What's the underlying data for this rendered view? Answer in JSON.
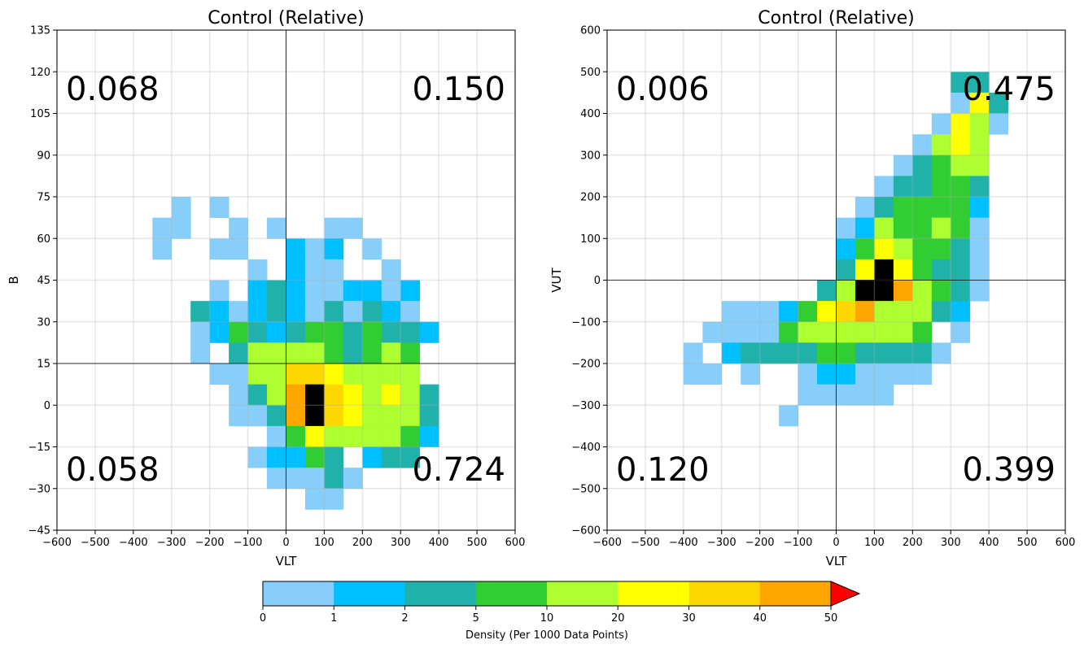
{
  "colorbar": {
    "label": "Density (Per 1000 Data Points)",
    "bounds": [
      0,
      1,
      2,
      5,
      10,
      20,
      30,
      40,
      50
    ],
    "tick_labels": [
      "0",
      "1",
      "2",
      "5",
      "10",
      "20",
      "30",
      "40",
      "50"
    ],
    "colors": [
      "#87cefa",
      "#00bfff",
      "#20b2aa",
      "#32cd32",
      "#adff2f",
      "#ffff00",
      "#ffd700",
      "#ffa500"
    ],
    "extend_color": "#ff0000"
  },
  "chart_data": [
    {
      "type": "heatmap",
      "title": "Control (Relative)",
      "xlabel": "VLT",
      "ylabel": "B",
      "xlim": [
        -600,
        600
      ],
      "ylim": [
        -45,
        135
      ],
      "xticks": [
        -600,
        -500,
        -400,
        -300,
        -200,
        -100,
        0,
        100,
        200,
        300,
        400,
        500,
        600
      ],
      "yticks": [
        -45,
        -30,
        -15,
        0,
        15,
        30,
        45,
        60,
        75,
        90,
        105,
        120,
        135
      ],
      "grid": true,
      "x_bin_width": 50,
      "y_bin_width": 7.5,
      "reference_lines": {
        "x": 0,
        "y": 15
      },
      "quadrant_labels": {
        "top_left": "0.068",
        "top_right": "0.150",
        "bottom_left": "0.058",
        "bottom_right": "0.724"
      },
      "cells": [
        [
          -300,
          67.5,
          0
        ],
        [
          -350,
          60,
          0
        ],
        [
          -300,
          60,
          0
        ],
        [
          -350,
          52.5,
          0
        ],
        [
          -200,
          67.5,
          0
        ],
        [
          -150,
          60,
          0
        ],
        [
          -200,
          52.5,
          0
        ],
        [
          -150,
          52.5,
          0
        ],
        [
          -50,
          60,
          0
        ],
        [
          100,
          60,
          0
        ],
        [
          150,
          60,
          0
        ],
        [
          0,
          52.5,
          1
        ],
        [
          50,
          52.5,
          0
        ],
        [
          100,
          52.5,
          1
        ],
        [
          200,
          52.5,
          0
        ],
        [
          -100,
          45,
          0
        ],
        [
          0,
          45,
          1
        ],
        [
          50,
          45,
          0
        ],
        [
          100,
          45,
          0
        ],
        [
          250,
          45,
          0
        ],
        [
          -200,
          37.5,
          0
        ],
        [
          -100,
          37.5,
          1
        ],
        [
          -50,
          37.5,
          2
        ],
        [
          0,
          37.5,
          1
        ],
        [
          50,
          37.5,
          0
        ],
        [
          100,
          37.5,
          0
        ],
        [
          150,
          37.5,
          1
        ],
        [
          200,
          37.5,
          1
        ],
        [
          250,
          37.5,
          0
        ],
        [
          300,
          37.5,
          1
        ],
        [
          -250,
          30,
          2
        ],
        [
          -200,
          30,
          1
        ],
        [
          -150,
          30,
          0
        ],
        [
          -100,
          30,
          1
        ],
        [
          -50,
          30,
          2
        ],
        [
          0,
          30,
          1
        ],
        [
          50,
          30,
          0
        ],
        [
          100,
          30,
          2
        ],
        [
          150,
          30,
          0
        ],
        [
          200,
          30,
          2
        ],
        [
          250,
          30,
          1
        ],
        [
          300,
          30,
          0
        ],
        [
          -250,
          22.5,
          0
        ],
        [
          -200,
          22.5,
          1
        ],
        [
          -150,
          22.5,
          3
        ],
        [
          -100,
          22.5,
          2
        ],
        [
          -50,
          22.5,
          1
        ],
        [
          0,
          22.5,
          2
        ],
        [
          50,
          22.5,
          3
        ],
        [
          100,
          22.5,
          3
        ],
        [
          150,
          22.5,
          2
        ],
        [
          200,
          22.5,
          3
        ],
        [
          250,
          22.5,
          2
        ],
        [
          300,
          22.5,
          2
        ],
        [
          350,
          22.5,
          1
        ],
        [
          -250,
          15,
          0
        ],
        [
          -150,
          15,
          2
        ],
        [
          -100,
          15,
          4
        ],
        [
          -50,
          15,
          4
        ],
        [
          0,
          15,
          4
        ],
        [
          50,
          15,
          4
        ],
        [
          100,
          15,
          3
        ],
        [
          150,
          15,
          2
        ],
        [
          200,
          15,
          3
        ],
        [
          250,
          15,
          4
        ],
        [
          300,
          15,
          3
        ],
        [
          -200,
          7.5,
          0
        ],
        [
          -150,
          7.5,
          0
        ],
        [
          -100,
          7.5,
          4
        ],
        [
          -50,
          7.5,
          4
        ],
        [
          0,
          7.5,
          6
        ],
        [
          50,
          7.5,
          6
        ],
        [
          100,
          7.5,
          5
        ],
        [
          150,
          7.5,
          4
        ],
        [
          200,
          7.5,
          4
        ],
        [
          250,
          7.5,
          4
        ],
        [
          300,
          7.5,
          4
        ],
        [
          -150,
          0,
          0
        ],
        [
          -100,
          0,
          2
        ],
        [
          -50,
          0,
          4
        ],
        [
          0,
          0,
          7
        ],
        [
          50,
          0,
          8
        ],
        [
          100,
          0,
          6
        ],
        [
          150,
          0,
          5
        ],
        [
          200,
          0,
          4
        ],
        [
          250,
          0,
          5
        ],
        [
          300,
          0,
          4
        ],
        [
          350,
          0,
          2
        ],
        [
          -150,
          -7.5,
          0
        ],
        [
          -100,
          -7.5,
          0
        ],
        [
          -50,
          -7.5,
          2
        ],
        [
          0,
          -7.5,
          7
        ],
        [
          50,
          -7.5,
          8
        ],
        [
          100,
          -7.5,
          6
        ],
        [
          150,
          -7.5,
          5
        ],
        [
          200,
          -7.5,
          4
        ],
        [
          250,
          -7.5,
          4
        ],
        [
          300,
          -7.5,
          4
        ],
        [
          350,
          -7.5,
          2
        ],
        [
          -50,
          -15,
          0
        ],
        [
          0,
          -15,
          3
        ],
        [
          50,
          -15,
          5
        ],
        [
          100,
          -15,
          4
        ],
        [
          150,
          -15,
          4
        ],
        [
          200,
          -15,
          4
        ],
        [
          250,
          -15,
          4
        ],
        [
          300,
          -15,
          3
        ],
        [
          350,
          -15,
          1
        ],
        [
          -100,
          -22.5,
          0
        ],
        [
          -50,
          -22.5,
          1
        ],
        [
          0,
          -22.5,
          1
        ],
        [
          50,
          -22.5,
          3
        ],
        [
          100,
          -22.5,
          2
        ],
        [
          200,
          -22.5,
          1
        ],
        [
          250,
          -22.5,
          2
        ],
        [
          300,
          -22.5,
          2
        ],
        [
          -50,
          -30,
          0
        ],
        [
          0,
          -30,
          0
        ],
        [
          50,
          -30,
          0
        ],
        [
          100,
          -30,
          2
        ],
        [
          150,
          -30,
          0
        ],
        [
          50,
          -37.5,
          0
        ],
        [
          100,
          -37.5,
          0
        ]
      ]
    },
    {
      "type": "heatmap",
      "title": "Control (Relative)",
      "xlabel": "VLT",
      "ylabel": "VUT",
      "xlim": [
        -600,
        600
      ],
      "ylim": [
        -600,
        600
      ],
      "xticks": [
        -600,
        -500,
        -400,
        -300,
        -200,
        -100,
        0,
        100,
        200,
        300,
        400,
        500,
        600
      ],
      "yticks": [
        -600,
        -500,
        -400,
        -300,
        -200,
        -100,
        0,
        100,
        200,
        300,
        400,
        500,
        600
      ],
      "grid": true,
      "x_bin_width": 50,
      "y_bin_width": 50,
      "reference_lines": {
        "x": 0,
        "y": 0
      },
      "quadrant_labels": {
        "top_left": "0.006",
        "top_right": "0.475",
        "bottom_left": "0.120",
        "bottom_right": "0.399"
      },
      "cells": [
        [
          300,
          450,
          2
        ],
        [
          350,
          450,
          2
        ],
        [
          300,
          400,
          0
        ],
        [
          350,
          400,
          5
        ],
        [
          400,
          400,
          2
        ],
        [
          250,
          350,
          0
        ],
        [
          300,
          350,
          5
        ],
        [
          350,
          350,
          4
        ],
        [
          400,
          350,
          0
        ],
        [
          200,
          300,
          0
        ],
        [
          250,
          300,
          4
        ],
        [
          300,
          300,
          5
        ],
        [
          350,
          300,
          4
        ],
        [
          150,
          250,
          0
        ],
        [
          200,
          250,
          2
        ],
        [
          250,
          250,
          3
        ],
        [
          300,
          250,
          4
        ],
        [
          350,
          250,
          4
        ],
        [
          100,
          200,
          0
        ],
        [
          150,
          200,
          2
        ],
        [
          200,
          200,
          2
        ],
        [
          250,
          200,
          3
        ],
        [
          300,
          200,
          3
        ],
        [
          350,
          200,
          2
        ],
        [
          50,
          150,
          0
        ],
        [
          100,
          150,
          2
        ],
        [
          150,
          150,
          3
        ],
        [
          200,
          150,
          3
        ],
        [
          250,
          150,
          3
        ],
        [
          300,
          150,
          3
        ],
        [
          350,
          150,
          1
        ],
        [
          0,
          100,
          0
        ],
        [
          50,
          100,
          1
        ],
        [
          100,
          100,
          4
        ],
        [
          150,
          100,
          3
        ],
        [
          200,
          100,
          3
        ],
        [
          250,
          100,
          4
        ],
        [
          300,
          100,
          3
        ],
        [
          350,
          100,
          0
        ],
        [
          0,
          50,
          1
        ],
        [
          50,
          50,
          3
        ],
        [
          100,
          50,
          5
        ],
        [
          150,
          50,
          4
        ],
        [
          200,
          50,
          3
        ],
        [
          250,
          50,
          3
        ],
        [
          300,
          50,
          2
        ],
        [
          350,
          50,
          0
        ],
        [
          0,
          0,
          2
        ],
        [
          50,
          0,
          5
        ],
        [
          100,
          0,
          8
        ],
        [
          150,
          0,
          5
        ],
        [
          200,
          0,
          3
        ],
        [
          250,
          0,
          2
        ],
        [
          300,
          0,
          2
        ],
        [
          350,
          0,
          0
        ],
        [
          -50,
          -50,
          2
        ],
        [
          0,
          -50,
          4
        ],
        [
          50,
          -50,
          8
        ],
        [
          100,
          -50,
          8
        ],
        [
          150,
          -50,
          7
        ],
        [
          200,
          -50,
          4
        ],
        [
          250,
          -50,
          3
        ],
        [
          300,
          -50,
          2
        ],
        [
          350,
          -50,
          0
        ],
        [
          -300,
          -100,
          0
        ],
        [
          -250,
          -100,
          0
        ],
        [
          -200,
          -100,
          0
        ],
        [
          -150,
          -100,
          1
        ],
        [
          -100,
          -100,
          3
        ],
        [
          -50,
          -100,
          5
        ],
        [
          0,
          -100,
          6
        ],
        [
          50,
          -100,
          7
        ],
        [
          100,
          -100,
          4
        ],
        [
          150,
          -100,
          4
        ],
        [
          200,
          -100,
          4
        ],
        [
          250,
          -100,
          2
        ],
        [
          300,
          -100,
          1
        ],
        [
          -350,
          -150,
          0
        ],
        [
          -300,
          -150,
          0
        ],
        [
          -250,
          -150,
          0
        ],
        [
          -200,
          -150,
          0
        ],
        [
          -150,
          -150,
          3
        ],
        [
          -100,
          -150,
          4
        ],
        [
          -50,
          -150,
          4
        ],
        [
          0,
          -150,
          4
        ],
        [
          50,
          -150,
          4
        ],
        [
          100,
          -150,
          4
        ],
        [
          150,
          -150,
          4
        ],
        [
          200,
          -150,
          3
        ],
        [
          300,
          -150,
          0
        ],
        [
          -400,
          -200,
          0
        ],
        [
          -300,
          -200,
          1
        ],
        [
          -250,
          -200,
          2
        ],
        [
          -200,
          -200,
          2
        ],
        [
          -150,
          -200,
          2
        ],
        [
          -100,
          -200,
          2
        ],
        [
          -50,
          -200,
          3
        ],
        [
          0,
          -200,
          3
        ],
        [
          50,
          -200,
          2
        ],
        [
          100,
          -200,
          2
        ],
        [
          150,
          -200,
          2
        ],
        [
          200,
          -200,
          2
        ],
        [
          250,
          -200,
          0
        ],
        [
          -400,
          -250,
          0
        ],
        [
          -350,
          -250,
          0
        ],
        [
          -250,
          -250,
          0
        ],
        [
          -100,
          -250,
          0
        ],
        [
          -50,
          -250,
          1
        ],
        [
          0,
          -250,
          1
        ],
        [
          50,
          -250,
          0
        ],
        [
          100,
          -250,
          0
        ],
        [
          150,
          -250,
          0
        ],
        [
          200,
          -250,
          0
        ],
        [
          -100,
          -300,
          0
        ],
        [
          -50,
          -300,
          0
        ],
        [
          0,
          -300,
          0
        ],
        [
          50,
          -300,
          0
        ],
        [
          100,
          -300,
          0
        ],
        [
          -150,
          -350,
          0
        ]
      ]
    }
  ]
}
